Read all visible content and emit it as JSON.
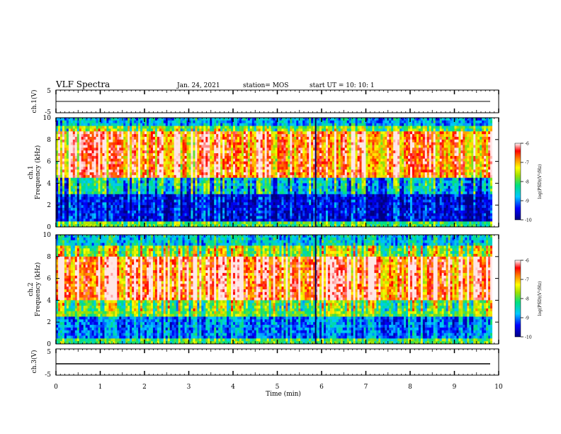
{
  "header": {
    "title": "VLF Spectra",
    "date": "Jan. 24, 2021",
    "station": "station= MOS",
    "start": "start UT =  10: 10: 1"
  },
  "chart_data": [
    {
      "type": "line",
      "panel": "ch1-waveform",
      "ylabel": "ch.1(V)",
      "yticks": [
        "5",
        "-5"
      ],
      "ylim": [
        -5,
        5
      ],
      "xlim": [
        0,
        10
      ],
      "description_values": "flat trace near -1 V across 0-9.85 min"
    },
    {
      "type": "heatmap",
      "panel": "ch1-spectrogram",
      "ylabel": "ch.1\nFrequency (kHz)",
      "yticks": [
        "0",
        "2",
        "4",
        "6",
        "8",
        "10"
      ],
      "ylim": [
        0,
        10
      ],
      "xlim": [
        0,
        10
      ],
      "colorbar": {
        "label": "log(PSD)(V²/Hz)",
        "ticks": [
          "-6",
          "-7",
          "-8",
          "-9",
          "-10"
        ],
        "range": [
          -10,
          -6
        ]
      }
    },
    {
      "type": "heatmap",
      "panel": "ch2-spectrogram",
      "ylabel": "ch.2\nFrequency (kHz)",
      "yticks": [
        "0",
        "2",
        "4",
        "6",
        "8",
        "10"
      ],
      "ylim": [
        0,
        10
      ],
      "xlim": [
        0,
        10
      ],
      "colorbar": {
        "label": "log(PSD)(V²/Hz)",
        "ticks": [
          "-6",
          "-7",
          "-8",
          "-9",
          "-10"
        ],
        "range": [
          -10,
          -6
        ]
      }
    },
    {
      "type": "line",
      "panel": "ch3-waveform",
      "ylabel": "ch.3(V)",
      "yticks": [
        "5",
        "-5"
      ],
      "ylim": [
        -5,
        5
      ],
      "xlim": [
        0,
        10
      ],
      "xlabel": "Time (min)",
      "xticks": [
        "0",
        "1",
        "2",
        "3",
        "4",
        "5",
        "6",
        "7",
        "8",
        "9",
        "10"
      ]
    }
  ],
  "labels": {
    "ch1_v": "ch.1(V)",
    "ch3_v": "ch.3(V)",
    "ch1": "ch.1",
    "ch2": "ch.2",
    "freq": "Frequency (kHz)",
    "xlabel": "Time (min)",
    "cbar": "log(PSD)(V²/Hz)"
  }
}
